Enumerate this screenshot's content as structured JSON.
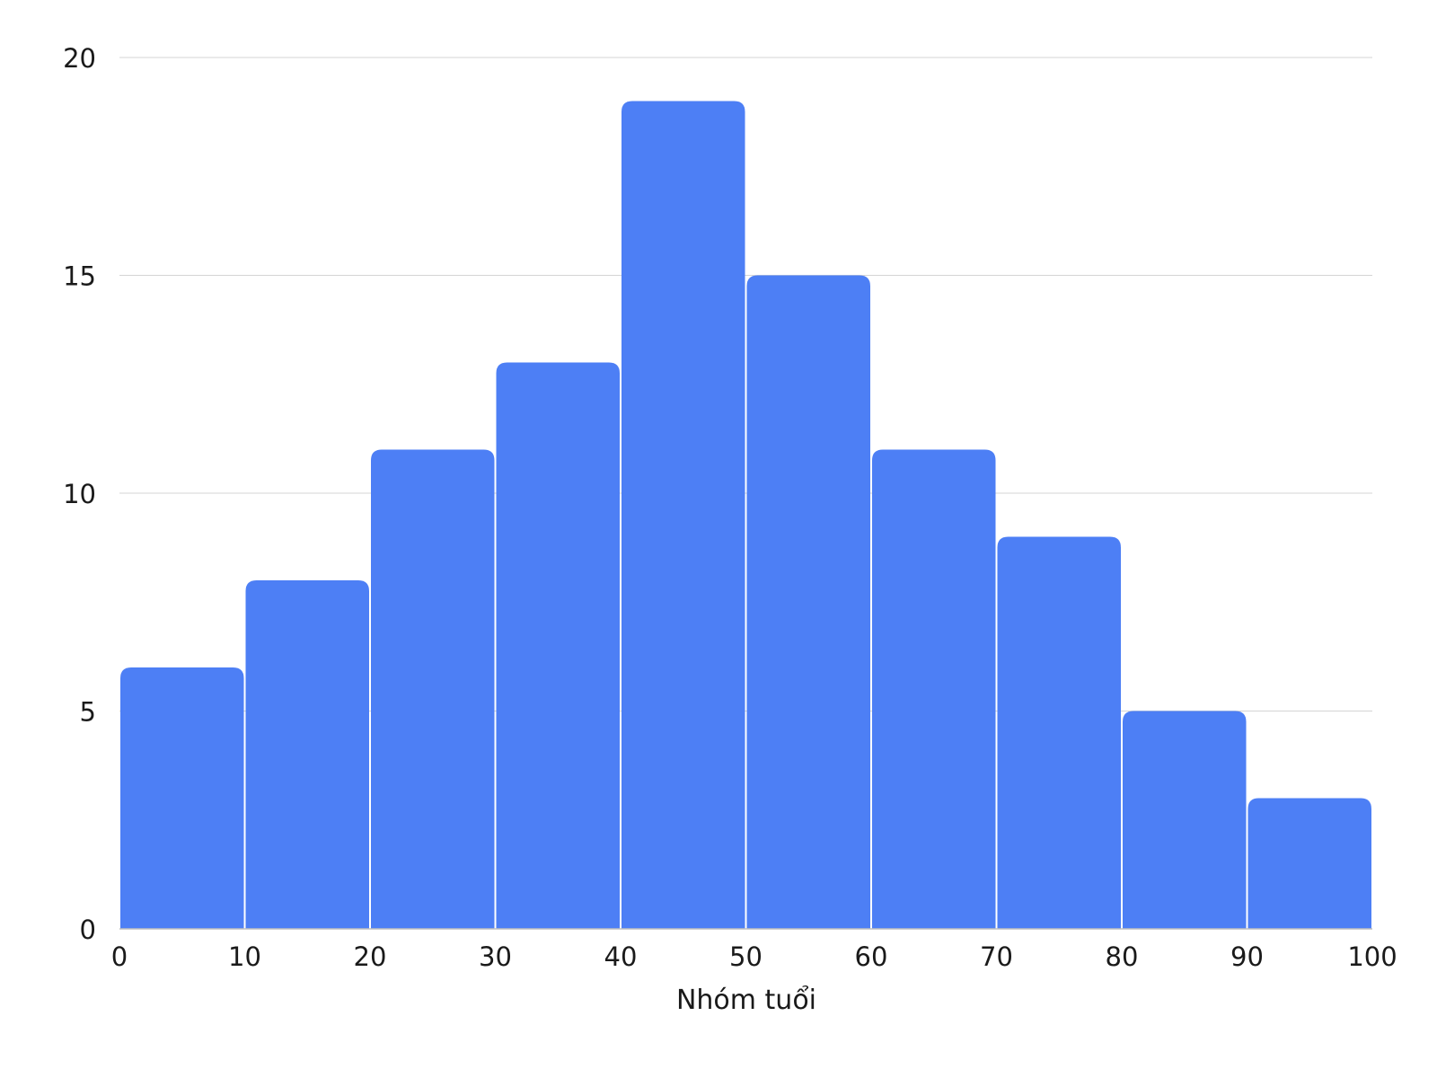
{
  "chart_data": {
    "type": "bar",
    "subtype": "histogram",
    "bin_edges": [
      0,
      10,
      20,
      30,
      40,
      50,
      60,
      70,
      80,
      90,
      100
    ],
    "values": [
      6,
      8,
      11,
      13,
      19,
      15,
      11,
      9,
      5,
      3
    ],
    "title": "",
    "xlabel": "Nhóm tuổi",
    "ylabel": "",
    "xlim": [
      0,
      100
    ],
    "ylim": [
      0,
      20
    ],
    "x_ticks": [
      "0",
      "10",
      "20",
      "30",
      "40",
      "50",
      "60",
      "70",
      "80",
      "90",
      "100"
    ],
    "y_ticks": [
      "0",
      "5",
      "10",
      "15",
      "20"
    ],
    "grid": "horizontal",
    "legend": "none",
    "bar_color": "#4d7ff5"
  }
}
